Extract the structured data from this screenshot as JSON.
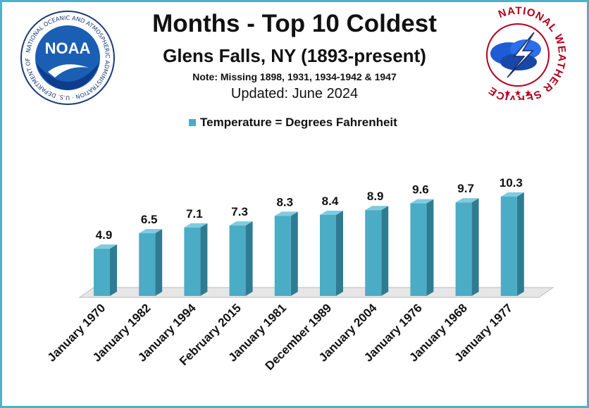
{
  "header": {
    "title": "Months - Top 10 Coldest",
    "subtitle": "Glens Falls, NY (1893-present)",
    "note": "Note: Missing 1898, 1931, 1934-1942 & 1947",
    "updated": "Updated: June 2024"
  },
  "logos": {
    "noaa": {
      "center_text": "NOAA",
      "ring_text": "NATIONAL OCEANIC AND ATMOSPHERIC ADMINISTRATION · U.S. DEPARTMENT OF COMMERCE"
    },
    "nws": {
      "ring_text": "NATIONAL WEATHER SERVICE"
    }
  },
  "colors": {
    "bar_face": "#4bacc6",
    "bar_side": "#2f7c92",
    "bar_top": "#7fcbe0",
    "border": "#4bb3c8",
    "floor": "#e6e6e6"
  },
  "chart_data": {
    "type": "bar",
    "title": "Months - Top 10 Coldest",
    "legend": {
      "entry": "Temperature = Degrees Fahrenheit",
      "placement": "top-center"
    },
    "categories": [
      "January 1970",
      "January 1982",
      "January 1994",
      "February 2015",
      "January 1981",
      "December 1989",
      "January 2004",
      "January 1976",
      "January 1968",
      "January 1977"
    ],
    "values": [
      4.9,
      6.5,
      7.1,
      7.3,
      8.3,
      8.4,
      8.9,
      9.6,
      9.7,
      10.3
    ],
    "value_labels": [
      "4.9",
      "6.5",
      "7.1",
      "7.3",
      "8.3",
      "8.4",
      "8.9",
      "9.6",
      "9.7",
      "10.3"
    ],
    "grid": false
  }
}
